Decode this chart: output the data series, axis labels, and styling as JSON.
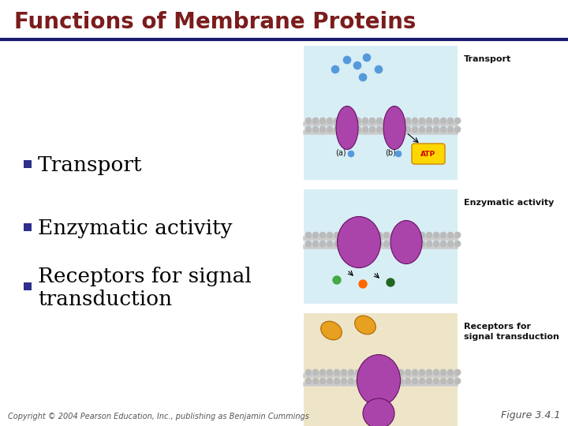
{
  "title": "Functions of Membrane Proteins",
  "title_color": "#7B1C1C",
  "title_fontsize": 20,
  "underline_color": "#1A1A6E",
  "bullet_color": "#2E2E8B",
  "bullet_items": [
    "Transport",
    "Enzymatic activity",
    "Receptors for signal\ntransduction"
  ],
  "bullet_fontsize": 19,
  "background_color": "#FFFFFF",
  "copyright_text": "Copyright © 2004 Pearson Education, Inc., publishing as Benjamin Cummings",
  "copyright_fontsize": 7,
  "figure_label": "Figure 3.4.1",
  "figure_label_fontsize": 9,
  "panel1_bg": "#D8EEF5",
  "panel2_bg": "#D8EEF5",
  "panel3_bg": "#EEE5C8",
  "membrane_color": "#AAAAAA",
  "membrane_ball_color": "#BBBBBB",
  "protein_color": "#AA44AA",
  "label_fontsize": 8,
  "label_color": "#111111"
}
